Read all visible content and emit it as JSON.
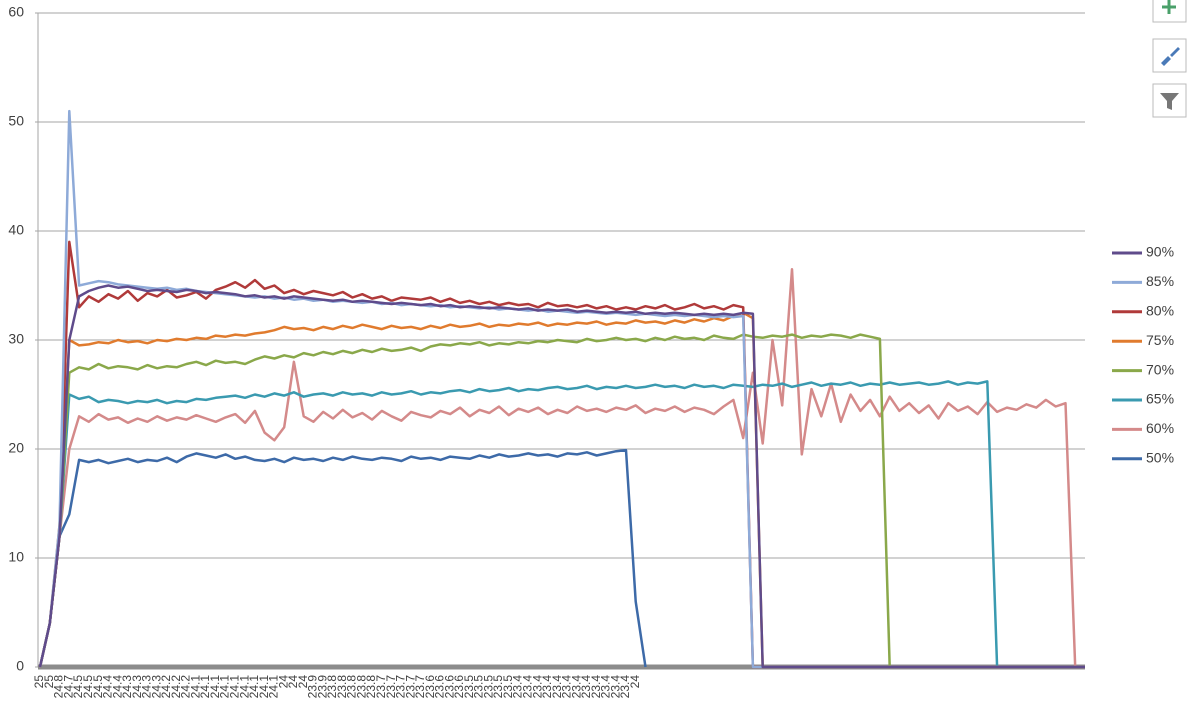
{
  "chart_data": {
    "type": "line",
    "categories": [
      "25",
      "25",
      "24.8",
      "24.7",
      "24.5",
      "24.5",
      "24.5",
      "24.4",
      "24.4",
      "24.3",
      "24.3",
      "24.3",
      "24.3",
      "24.2",
      "24.2",
      "24.2",
      "24.1",
      "24.1",
      "24.1",
      "24.1",
      "24.1",
      "24.1",
      "24.1",
      "24.1",
      "24.1",
      "24",
      "24",
      "24",
      "23.9",
      "23.9",
      "23.8",
      "23.8",
      "23.8",
      "23.8",
      "23.8",
      "23.7",
      "23.7",
      "23.7",
      "23.7",
      "23.7",
      "23.6",
      "23.6",
      "23.6",
      "23.6",
      "23.5",
      "23.5",
      "23.5",
      "23.5",
      "23.5",
      "23.4",
      "23.4",
      "23.4",
      "23.4",
      "23.4",
      "23.4",
      "23.4",
      "23.4",
      "23.4",
      "23.4",
      "23.4",
      "23.4",
      "24",
      null,
      null,
      null,
      null,
      null,
      null,
      null,
      null,
      null,
      null,
      null,
      null,
      null,
      null,
      null,
      null,
      null,
      null,
      null,
      null,
      null,
      null,
      null,
      null,
      null,
      null,
      null,
      null,
      null,
      null,
      null,
      null,
      null,
      null,
      null,
      null,
      null,
      null,
      null,
      null,
      null,
      null,
      null,
      null,
      null,
      null
    ],
    "ylim": [
      0,
      60
    ],
    "yticks": [
      0,
      10,
      20,
      30,
      40,
      50,
      60
    ],
    "grid": true,
    "legend": "right",
    "series": [
      {
        "name": "90%",
        "color": "#5f4b8b",
        "values": [
          0,
          4,
          12,
          30,
          34,
          34.5,
          34.8,
          35,
          34.8,
          34.9,
          34.7,
          34.5,
          34.6,
          34.5,
          34.4,
          34.6,
          34.5,
          34.3,
          34.4,
          34.3,
          34.2,
          34,
          34.1,
          33.9,
          34,
          33.8,
          34,
          33.9,
          33.8,
          33.7,
          33.6,
          33.7,
          33.5,
          33.6,
          33.5,
          33.4,
          33.3,
          33.4,
          33.3,
          33.2,
          33.3,
          33.1,
          33.2,
          33,
          33.1,
          33,
          32.9,
          33,
          32.9,
          32.8,
          32.9,
          32.7,
          32.8,
          32.7,
          32.8,
          32.6,
          32.7,
          32.6,
          32.5,
          32.6,
          32.5,
          32.6,
          32.4,
          32.5,
          32.4,
          32.5,
          32.4,
          32.3,
          32.4,
          32.3,
          32.4,
          32.3,
          32.5,
          32.4,
          0,
          0,
          0,
          0,
          0,
          0,
          0,
          0,
          0,
          0,
          0,
          0,
          0,
          0,
          0,
          0,
          0,
          0,
          0,
          0,
          0,
          0,
          0,
          0,
          0,
          0,
          0,
          0,
          0,
          0,
          0,
          0,
          0,
          0
        ]
      },
      {
        "name": "85%",
        "color": "#8eaad8",
        "values": [
          0,
          4,
          13,
          51,
          35,
          35.2,
          35.4,
          35.3,
          35.1,
          35,
          34.9,
          34.8,
          34.7,
          34.8,
          34.6,
          34.7,
          34.5,
          34.4,
          34.3,
          34.2,
          34.1,
          34,
          33.9,
          34,
          33.8,
          33.9,
          33.7,
          33.8,
          33.6,
          33.7,
          33.5,
          33.6,
          33.5,
          33.4,
          33.5,
          33.3,
          33.4,
          33.2,
          33.3,
          33.2,
          33.1,
          33.2,
          33,
          33.1,
          33,
          32.9,
          33,
          32.8,
          32.9,
          32.8,
          32.7,
          32.8,
          32.6,
          32.7,
          32.6,
          32.5,
          32.6,
          32.5,
          32.4,
          32.5,
          32.4,
          32.3,
          32.4,
          32.3,
          32.2,
          32.3,
          32.2,
          32.3,
          32.2,
          32.1,
          32.2,
          32.1,
          32.2,
          0,
          0,
          0,
          0,
          0,
          0,
          0,
          0,
          0,
          0,
          0,
          0,
          0,
          0,
          0,
          0,
          0,
          0,
          0,
          0,
          0,
          0,
          0,
          0,
          0,
          0,
          0,
          0,
          0,
          0,
          0,
          0,
          0,
          0,
          0
        ]
      },
      {
        "name": "80%",
        "color": "#b03a3a",
        "values": [
          0,
          4,
          12,
          39,
          33,
          34,
          33.5,
          34.2,
          33.8,
          34.5,
          33.6,
          34.3,
          34,
          34.6,
          33.9,
          34.1,
          34.4,
          33.8,
          34.6,
          34.9,
          35.3,
          34.8,
          35.5,
          34.7,
          35,
          34.3,
          34.6,
          34.2,
          34.5,
          34.3,
          34.1,
          34.4,
          33.9,
          34.2,
          33.8,
          34,
          33.6,
          33.9,
          33.8,
          33.7,
          33.9,
          33.5,
          33.8,
          33.4,
          33.6,
          33.3,
          33.5,
          33.2,
          33.4,
          33.2,
          33.3,
          33,
          33.4,
          33.1,
          33.2,
          33,
          33.2,
          32.9,
          33.1,
          32.8,
          33,
          32.8,
          33.1,
          32.9,
          33.2,
          32.8,
          33,
          33.3,
          32.9,
          33.1,
          32.8,
          33.2,
          33,
          0,
          0,
          0,
          0,
          0,
          0,
          0,
          0,
          0,
          0,
          0,
          0,
          0,
          0,
          0,
          0,
          0,
          0,
          0,
          0,
          0,
          0,
          0,
          0,
          0,
          0,
          0,
          0,
          0,
          0,
          0,
          0,
          0,
          0,
          0
        ]
      },
      {
        "name": "75%",
        "color": "#e07b2e",
        "values": [
          0,
          4,
          13,
          30,
          29.5,
          29.6,
          29.8,
          29.7,
          30,
          29.8,
          29.9,
          29.7,
          30,
          29.9,
          30.1,
          30,
          30.2,
          30.1,
          30.4,
          30.3,
          30.5,
          30.4,
          30.6,
          30.7,
          30.9,
          31.2,
          31,
          31.1,
          30.9,
          31.2,
          31,
          31.3,
          31.1,
          31.4,
          31.2,
          31,
          31.3,
          31.1,
          31.2,
          31,
          31.3,
          31.1,
          31.4,
          31.2,
          31.3,
          31.5,
          31.2,
          31.4,
          31.3,
          31.5,
          31.4,
          31.6,
          31.3,
          31.5,
          31.4,
          31.6,
          31.5,
          31.7,
          31.4,
          31.6,
          31.5,
          31.8,
          31.6,
          31.7,
          31.5,
          31.8,
          31.6,
          31.9,
          31.7,
          32,
          31.8,
          32.2,
          32.5,
          32,
          0,
          0,
          0,
          0,
          0,
          0,
          0,
          0,
          0,
          0,
          0,
          0,
          0,
          0,
          0,
          0,
          0,
          0,
          0,
          0,
          0,
          0,
          0,
          0,
          0,
          0,
          0,
          0,
          0,
          0,
          0,
          0,
          0,
          0
        ]
      },
      {
        "name": "70%",
        "color": "#8aa84a",
        "values": [
          0,
          4,
          12,
          27,
          27.5,
          27.3,
          27.8,
          27.4,
          27.6,
          27.5,
          27.3,
          27.7,
          27.4,
          27.6,
          27.5,
          27.8,
          28,
          27.7,
          28.1,
          27.9,
          28,
          27.8,
          28.2,
          28.5,
          28.3,
          28.6,
          28.4,
          28.8,
          28.6,
          28.9,
          28.7,
          29,
          28.8,
          29.1,
          28.9,
          29.2,
          29,
          29.1,
          29.3,
          29,
          29.4,
          29.6,
          29.5,
          29.7,
          29.6,
          29.8,
          29.5,
          29.7,
          29.6,
          29.8,
          29.7,
          29.9,
          29.8,
          30,
          29.9,
          29.8,
          30.1,
          29.9,
          30,
          30.2,
          30,
          30.1,
          29.9,
          30.2,
          30,
          30.3,
          30.1,
          30.2,
          30,
          30.4,
          30.2,
          30.1,
          30.5,
          30.3,
          30.2,
          30.4,
          30.3,
          30.5,
          30.2,
          30.4,
          30.3,
          30.5,
          30.4,
          30.2,
          30.5,
          30.3,
          30.1,
          0,
          0,
          0,
          0,
          0,
          0,
          0,
          0,
          0,
          0,
          0,
          0,
          0,
          0,
          0,
          0,
          0,
          0,
          0,
          0,
          0
        ]
      },
      {
        "name": "65%",
        "color": "#3a9ab0",
        "values": [
          0,
          4,
          12,
          25,
          24.6,
          24.8,
          24.3,
          24.5,
          24.4,
          24.2,
          24.4,
          24.3,
          24.5,
          24.2,
          24.4,
          24.3,
          24.6,
          24.5,
          24.7,
          24.8,
          24.9,
          24.7,
          25,
          24.8,
          25.1,
          24.9,
          25.2,
          24.8,
          25,
          25.1,
          24.9,
          25.2,
          25,
          25.1,
          24.9,
          25.2,
          25,
          25.1,
          25.3,
          25,
          25.2,
          25.1,
          25.3,
          25.4,
          25.2,
          25.5,
          25.3,
          25.4,
          25.6,
          25.3,
          25.5,
          25.4,
          25.6,
          25.7,
          25.5,
          25.6,
          25.8,
          25.5,
          25.7,
          25.6,
          25.8,
          25.6,
          25.7,
          25.9,
          25.7,
          25.8,
          25.6,
          25.9,
          25.7,
          25.8,
          25.6,
          25.9,
          25.8,
          25.7,
          25.9,
          25.8,
          26,
          25.7,
          25.9,
          26.1,
          25.8,
          26,
          25.9,
          26.1,
          25.8,
          26,
          25.9,
          26.1,
          25.9,
          26,
          26.1,
          25.9,
          26,
          26.2,
          25.9,
          26.1,
          26,
          26.2,
          0,
          0,
          0,
          0,
          0,
          0,
          0,
          0,
          0,
          0
        ]
      },
      {
        "name": "60%",
        "color": "#d48a8a",
        "values": [
          0,
          4,
          12,
          20,
          23,
          22.5,
          23.2,
          22.7,
          22.9,
          22.4,
          22.8,
          22.5,
          23,
          22.6,
          22.9,
          22.7,
          23.1,
          22.8,
          22.5,
          22.9,
          23.2,
          22.4,
          23.5,
          21.5,
          20.8,
          22,
          28,
          23,
          22.5,
          23.4,
          22.8,
          23.6,
          22.9,
          23.3,
          22.7,
          23.5,
          23,
          22.6,
          23.4,
          23.1,
          22.9,
          23.5,
          23.2,
          23.8,
          23,
          23.6,
          23.3,
          23.9,
          23.1,
          23.7,
          23.4,
          23.8,
          23.2,
          23.6,
          23.3,
          23.9,
          23.5,
          23.7,
          23.4,
          23.8,
          23.6,
          24,
          23.3,
          23.7,
          23.5,
          23.9,
          23.4,
          23.8,
          23.6,
          23.2,
          23.9,
          24.5,
          21,
          27,
          20.5,
          30,
          24,
          36.5,
          19.5,
          25.5,
          23,
          26,
          22.5,
          25,
          23.5,
          24.5,
          23,
          24.8,
          23.5,
          24.2,
          23.3,
          24,
          22.8,
          24.2,
          23.5,
          23.9,
          23.2,
          24.3,
          23.4,
          23.8,
          23.6,
          24.1,
          23.8,
          24.5,
          23.9,
          24.2,
          0,
          0
        ]
      },
      {
        "name": "50%",
        "color": "#3d6aa8",
        "values": [
          0,
          4,
          12,
          14,
          19,
          18.8,
          19,
          18.7,
          18.9,
          19.1,
          18.8,
          19,
          18.9,
          19.2,
          18.8,
          19.3,
          19.6,
          19.4,
          19.2,
          19.5,
          19.1,
          19.3,
          19,
          18.9,
          19.1,
          18.8,
          19.2,
          19,
          19.1,
          18.9,
          19.2,
          19,
          19.3,
          19.1,
          19,
          19.2,
          19.1,
          18.9,
          19.3,
          19.1,
          19.2,
          19,
          19.3,
          19.2,
          19.1,
          19.4,
          19.2,
          19.5,
          19.3,
          19.4,
          19.6,
          19.4,
          19.5,
          19.3,
          19.6,
          19.5,
          19.7,
          19.4,
          19.6,
          19.8,
          19.9,
          6,
          0,
          null,
          null,
          null,
          null,
          null,
          null,
          null,
          null,
          null,
          null,
          null,
          null,
          null,
          null,
          null,
          null,
          null,
          null,
          null,
          null,
          null,
          null,
          null,
          null,
          null,
          null,
          null,
          null,
          null,
          null,
          null,
          null,
          null,
          null,
          null,
          null,
          null,
          null,
          null,
          null,
          null,
          null,
          null,
          null,
          null
        ]
      }
    ]
  }
}
